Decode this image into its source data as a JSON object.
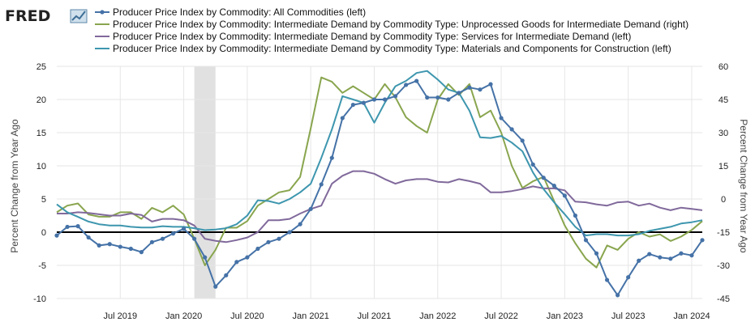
{
  "brand": "FRED",
  "chart_data": {
    "type": "line",
    "title": "",
    "left_ylabel": "Percent Change from Year Ago",
    "right_ylabel": "Percent Change from Year Ago",
    "left_ylim": [
      -10,
      25
    ],
    "right_ylim": [
      -45,
      60
    ],
    "left_yticks": [
      -10,
      -5,
      0,
      5,
      10,
      15,
      20,
      25
    ],
    "left_ytick_labels": [
      "-10",
      "-5",
      "0",
      "5",
      "10",
      "15",
      "20",
      "25"
    ],
    "right_yticks": [
      -45,
      -30,
      -15,
      0,
      15,
      30,
      45,
      60
    ],
    "right_ytick_labels": [
      "-45",
      "-30",
      "-15",
      "0",
      "15",
      "30",
      "45",
      "60"
    ],
    "x_start": "2019-01",
    "x_end": "2024-02",
    "xticks": [
      "2019-07",
      "2020-01",
      "2020-07",
      "2021-01",
      "2021-07",
      "2022-01",
      "2022-07",
      "2023-01",
      "2023-07",
      "2024-01"
    ],
    "xtick_labels": [
      "Jul 2019",
      "Jan 2020",
      "Jul 2020",
      "Jan 2021",
      "Jul 2021",
      "Jan 2022",
      "Jul 2022",
      "Jan 2023",
      "Jul 2023",
      "Jan 2024"
    ],
    "recession": [
      "2020-02",
      "2020-04"
    ],
    "zero_line": 0,
    "grid": true,
    "legend_position": "top-left",
    "series": [
      {
        "name": "Producer Price Index by Commodity: All Commodities (left)",
        "axis": "left",
        "color": "#4572a7",
        "markers": true,
        "values": [
          -0.5,
          0.8,
          0.9,
          -0.8,
          -2.0,
          -1.8,
          -2.2,
          -2.5,
          -3.0,
          -1.5,
          -1.0,
          -0.2,
          0.5,
          -1.0,
          -3.8,
          -8.2,
          -6.5,
          -4.5,
          -3.8,
          -2.5,
          -1.5,
          -1.0,
          0.0,
          1.2,
          3.5,
          7.2,
          11.2,
          17.2,
          19.2,
          19.5,
          20.0,
          20.0,
          20.5,
          22.2,
          22.8,
          20.3,
          20.3,
          20.0,
          21.0,
          21.8,
          21.5,
          22.3,
          17.2,
          15.5,
          13.8,
          10.2,
          8.2,
          7.0,
          5.5,
          2.5,
          -1.2,
          -3.2,
          -7.2,
          -9.5,
          -6.8,
          -4.3,
          -3.3,
          -3.8,
          -4.0,
          -3.2,
          -3.5,
          -1.2
        ]
      },
      {
        "name": "Producer Price Index by Commodity: Intermediate Demand by Commodity Type: Unprocessed Goods for Intermediate Demand (right)",
        "axis": "right",
        "color": "#89a54e",
        "markers": false,
        "values": [
          -6,
          -3,
          -2,
          -7,
          -8,
          -8,
          -6,
          -6,
          -9,
          -4,
          -6,
          -3,
          -7,
          -18,
          -30,
          -23,
          -13,
          -13,
          -10,
          -3,
          0,
          3,
          4,
          10,
          32,
          55,
          53,
          48,
          51,
          48,
          45,
          52,
          46,
          37,
          33,
          30,
          45,
          52,
          47,
          52,
          37,
          40,
          30,
          15,
          5,
          8,
          10,
          -1,
          -12,
          -20,
          -27,
          -31,
          -21,
          -23,
          -18,
          -15,
          -17,
          -16,
          -19,
          -17,
          -14,
          -10
        ]
      },
      {
        "name": "Producer Price Index by Commodity: Intermediate Demand by Commodity Type: Services for Intermediate Demand (left)",
        "axis": "left",
        "color": "#80699b",
        "markers": false,
        "values": [
          2.8,
          2.8,
          3.0,
          2.9,
          2.7,
          2.5,
          2.5,
          2.8,
          2.6,
          1.6,
          2.0,
          2.0,
          1.8,
          1.0,
          -1.0,
          -1.3,
          -1.5,
          -1.2,
          -0.8,
          0.0,
          1.8,
          1.8,
          2.0,
          2.8,
          3.5,
          4.0,
          7.3,
          8.5,
          9.2,
          9.2,
          8.8,
          8.0,
          7.3,
          7.8,
          8.0,
          8.0,
          7.6,
          7.5,
          8.0,
          7.7,
          7.3,
          6.0,
          6.0,
          6.2,
          6.5,
          6.9,
          6.6,
          6.6,
          6.3,
          4.6,
          4.5,
          4.2,
          4.0,
          4.5,
          4.6,
          4.0,
          4.3,
          3.7,
          3.3,
          3.7,
          3.5,
          3.3
        ]
      },
      {
        "name": "Producer Price Index by Commodity: Intermediate Demand by Commodity Type: Materials and Components for Construction (left)",
        "axis": "left",
        "color": "#3d96ae",
        "markers": false,
        "values": [
          4.2,
          3.0,
          2.3,
          1.6,
          1.2,
          1.0,
          1.0,
          0.8,
          0.7,
          0.7,
          0.9,
          0.8,
          0.8,
          0.6,
          0.3,
          0.4,
          0.6,
          1.2,
          2.5,
          4.8,
          4.7,
          4.3,
          5.0,
          6.0,
          7.3,
          11.2,
          15.5,
          20.5,
          20.0,
          19.5,
          16.5,
          19.5,
          22.0,
          22.8,
          24.0,
          24.3,
          23.0,
          21.5,
          21.0,
          18.3,
          14.3,
          14.2,
          14.5,
          13.5,
          12.2,
          9.0,
          6.5,
          4.5,
          2.7,
          0.8,
          -0.5,
          -0.3,
          -0.3,
          -0.5,
          -0.5,
          -0.3,
          0.2,
          0.5,
          0.8,
          1.3,
          1.5,
          1.8
        ]
      }
    ]
  }
}
